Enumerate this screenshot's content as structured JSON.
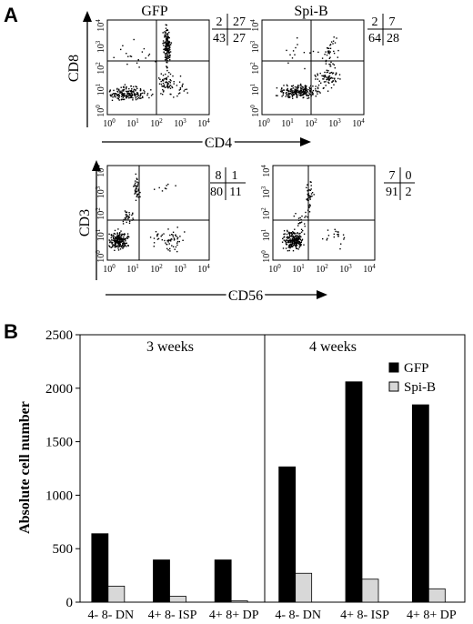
{
  "panel_a": {
    "label": "A",
    "cd4_label": "CD4",
    "cd8_label": "CD8",
    "cd3_label": "CD3",
    "cd56_label": "CD56",
    "ticks": [
      "10",
      "10",
      "10",
      "10",
      "10"
    ],
    "tick_exps": [
      "0",
      "1",
      "2",
      "3",
      "4"
    ],
    "plots": [
      {
        "title": "GFP",
        "quadrants": [
          "2",
          "27",
          "43",
          "27"
        ]
      },
      {
        "title": "Spi-B",
        "quadrants": [
          "2",
          "7",
          "64",
          "28"
        ]
      },
      {
        "title": "",
        "quadrants": [
          "8",
          "1",
          "80",
          "11"
        ]
      },
      {
        "title": "",
        "quadrants": [
          "7",
          "0",
          "91",
          "2"
        ]
      }
    ]
  },
  "chart_data": {
    "type": "bar",
    "panel_label": "B",
    "ylabel": "Absolute cell number",
    "ylim": [
      0,
      2500
    ],
    "yticks": [
      "0",
      "500",
      "1000",
      "1500",
      "2000",
      "2500"
    ],
    "groups": [
      {
        "label": "3 weeks",
        "categories": [
          "4- 8- DN",
          "4+ 8- ISP",
          "4+ 8+ DP"
        ],
        "series": [
          {
            "name": "GFP",
            "values": [
              640,
              395,
              395
            ]
          },
          {
            "name": "Spi-B",
            "values": [
              150,
              55,
              12
            ]
          }
        ]
      },
      {
        "label": "4 weeks",
        "categories": [
          "4- 8- DN",
          "4+ 8- ISP",
          "4+ 8+ DP"
        ],
        "series": [
          {
            "name": "GFP",
            "values": [
              1265,
              2060,
              1845
            ]
          },
          {
            "name": "Spi-B",
            "values": [
              270,
              215,
              125
            ]
          }
        ]
      }
    ],
    "legend": [
      {
        "name": "GFP",
        "color": "#000000"
      },
      {
        "name": "Spi-B",
        "color": "#d8d8d8"
      }
    ]
  }
}
